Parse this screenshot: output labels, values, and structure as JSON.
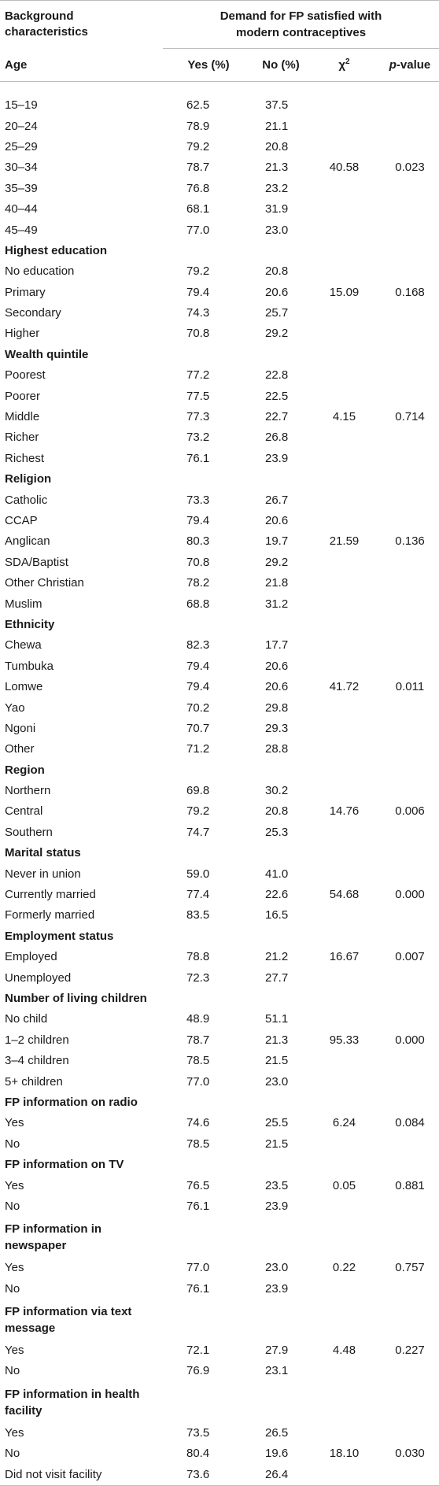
{
  "header": {
    "background_line1": "Background",
    "background_line2": "characteristics",
    "group_line1": "Demand for FP satisfied with",
    "group_line2": "modern contraceptives",
    "col_label": "Age",
    "col_yes": "Yes (%)",
    "col_no": "No (%)",
    "col_chi": "χ",
    "col_chi_sup": "2",
    "col_p_em": "p",
    "col_p_rest": "-value"
  },
  "groups": [
    {
      "id": "age",
      "title": "",
      "rows": [
        {
          "label": "15–19",
          "yes": "62.5",
          "no": "37.5",
          "chi": "",
          "p": ""
        },
        {
          "label": "20–24",
          "yes": "78.9",
          "no": "21.1",
          "chi": "",
          "p": ""
        },
        {
          "label": "25–29",
          "yes": "79.2",
          "no": "20.8",
          "chi": "",
          "p": ""
        },
        {
          "label": "30–34",
          "yes": "78.7",
          "no": "21.3",
          "chi": "40.58",
          "p": "0.023"
        },
        {
          "label": "35–39",
          "yes": "76.8",
          "no": "23.2",
          "chi": "",
          "p": ""
        },
        {
          "label": "40–44",
          "yes": "68.1",
          "no": "31.9",
          "chi": "",
          "p": ""
        },
        {
          "label": "45–49",
          "yes": "77.0",
          "no": "23.0",
          "chi": "",
          "p": ""
        }
      ]
    },
    {
      "id": "education",
      "title": "Highest education",
      "rows": [
        {
          "label": "No education",
          "yes": "79.2",
          "no": "20.8",
          "chi": "",
          "p": ""
        },
        {
          "label": "Primary",
          "yes": "79.4",
          "no": "20.6",
          "chi": "15.09",
          "p": "0.168"
        },
        {
          "label": "Secondary",
          "yes": "74.3",
          "no": "25.7",
          "chi": "",
          "p": ""
        },
        {
          "label": "Higher",
          "yes": "70.8",
          "no": "29.2",
          "chi": "",
          "p": ""
        }
      ]
    },
    {
      "id": "wealth",
      "title": "Wealth quintile",
      "rows": [
        {
          "label": "Poorest",
          "yes": "77.2",
          "no": "22.8",
          "chi": "",
          "p": ""
        },
        {
          "label": "Poorer",
          "yes": "77.5",
          "no": "22.5",
          "chi": "",
          "p": ""
        },
        {
          "label": "Middle",
          "yes": "77.3",
          "no": "22.7",
          "chi": "4.15",
          "p": "0.714"
        },
        {
          "label": "Richer",
          "yes": "73.2",
          "no": "26.8",
          "chi": "",
          "p": ""
        },
        {
          "label": "Richest",
          "yes": "76.1",
          "no": "23.9",
          "chi": "",
          "p": ""
        }
      ]
    },
    {
      "id": "religion",
      "title": "Religion",
      "rows": [
        {
          "label": "Catholic",
          "yes": "73.3",
          "no": "26.7",
          "chi": "",
          "p": ""
        },
        {
          "label": "CCAP",
          "yes": "79.4",
          "no": "20.6",
          "chi": "",
          "p": ""
        },
        {
          "label": "Anglican",
          "yes": "80.3",
          "no": "19.7",
          "chi": "21.59",
          "p": "0.136"
        },
        {
          "label": "SDA/Baptist",
          "yes": "70.8",
          "no": "29.2",
          "chi": "",
          "p": ""
        },
        {
          "label": "Other Christian",
          "yes": "78.2",
          "no": "21.8",
          "chi": "",
          "p": ""
        },
        {
          "label": "Muslim",
          "yes": "68.8",
          "no": "31.2",
          "chi": "",
          "p": ""
        }
      ]
    },
    {
      "id": "ethnicity",
      "title": "Ethnicity",
      "rows": [
        {
          "label": "Chewa",
          "yes": "82.3",
          "no": "17.7",
          "chi": "",
          "p": ""
        },
        {
          "label": "Tumbuka",
          "yes": "79.4",
          "no": "20.6",
          "chi": "",
          "p": ""
        },
        {
          "label": "Lomwe",
          "yes": "79.4",
          "no": "20.6",
          "chi": "41.72",
          "p": "0.011"
        },
        {
          "label": "Yao",
          "yes": "70.2",
          "no": "29.8",
          "chi": "",
          "p": ""
        },
        {
          "label": "Ngoni",
          "yes": "70.7",
          "no": "29.3",
          "chi": "",
          "p": ""
        },
        {
          "label": "Other",
          "yes": "71.2",
          "no": "28.8",
          "chi": "",
          "p": ""
        }
      ]
    },
    {
      "id": "region",
      "title": "Region",
      "rows": [
        {
          "label": "Northern",
          "yes": "69.8",
          "no": "30.2",
          "chi": "",
          "p": ""
        },
        {
          "label": "Central",
          "yes": "79.2",
          "no": "20.8",
          "chi": "14.76",
          "p": "0.006"
        },
        {
          "label": "Southern",
          "yes": "74.7",
          "no": "25.3",
          "chi": "",
          "p": ""
        }
      ]
    },
    {
      "id": "marital",
      "title": "Marital status",
      "rows": [
        {
          "label": "Never in union",
          "yes": "59.0",
          "no": "41.0",
          "chi": "",
          "p": ""
        },
        {
          "label": "Currently married",
          "yes": "77.4",
          "no": "22.6",
          "chi": "54.68",
          "p": "0.000"
        },
        {
          "label": "Formerly married",
          "yes": "83.5",
          "no": "16.5",
          "chi": "",
          "p": ""
        }
      ]
    },
    {
      "id": "employment",
      "title": "Employment status",
      "rows": [
        {
          "label": "Employed",
          "yes": "78.8",
          "no": "21.2",
          "chi": "16.67",
          "p": "0.007"
        },
        {
          "label": "Unemployed",
          "yes": "72.3",
          "no": "27.7",
          "chi": "",
          "p": ""
        }
      ]
    },
    {
      "id": "children",
      "title": "Number of living children",
      "rows": [
        {
          "label": "No child",
          "yes": "48.9",
          "no": "51.1",
          "chi": "",
          "p": ""
        },
        {
          "label": "1–2 children",
          "yes": "78.7",
          "no": "21.3",
          "chi": "95.33",
          "p": "0.000"
        },
        {
          "label": "3–4 children",
          "yes": "78.5",
          "no": "21.5",
          "chi": "",
          "p": ""
        },
        {
          "label": "5+ children",
          "yes": "77.0",
          "no": "23.0",
          "chi": "",
          "p": ""
        }
      ]
    },
    {
      "id": "radio",
      "title": "FP information on radio",
      "rows": [
        {
          "label": "Yes",
          "yes": "74.6",
          "no": "25.5",
          "chi": "6.24",
          "p": "0.084"
        },
        {
          "label": "No",
          "yes": "78.5",
          "no": "21.5",
          "chi": "",
          "p": ""
        }
      ]
    },
    {
      "id": "tv",
      "title": "FP information on TV",
      "rows": [
        {
          "label": "Yes",
          "yes": "76.5",
          "no": "23.5",
          "chi": "0.05",
          "p": "0.881"
        },
        {
          "label": "No",
          "yes": "76.1",
          "no": "23.9",
          "chi": "",
          "p": ""
        }
      ]
    },
    {
      "id": "newspaper",
      "title_line1": "FP information in",
      "title_line2": "newspaper",
      "rows": [
        {
          "label": "Yes",
          "yes": "77.0",
          "no": "23.0",
          "chi": "0.22",
          "p": "0.757"
        },
        {
          "label": "No",
          "yes": "76.1",
          "no": "23.9",
          "chi": "",
          "p": ""
        }
      ]
    },
    {
      "id": "text",
      "title_line1": "FP information via text",
      "title_line2": "message",
      "rows": [
        {
          "label": "Yes",
          "yes": "72.1",
          "no": "27.9",
          "chi": "4.48",
          "p": "0.227"
        },
        {
          "label": "No",
          "yes": "76.9",
          "no": "23.1",
          "chi": "",
          "p": ""
        }
      ]
    },
    {
      "id": "health",
      "title_line1": "FP information in health",
      "title_line2": "facility",
      "rows": [
        {
          "label": "Yes",
          "yes": "73.5",
          "no": "26.5",
          "chi": "",
          "p": ""
        },
        {
          "label": "No",
          "yes": "80.4",
          "no": "19.6",
          "chi": "18.10",
          "p": "0.030"
        },
        {
          "label": "Did not visit facility",
          "yes": "73.6",
          "no": "26.4",
          "chi": "",
          "p": ""
        }
      ]
    }
  ]
}
